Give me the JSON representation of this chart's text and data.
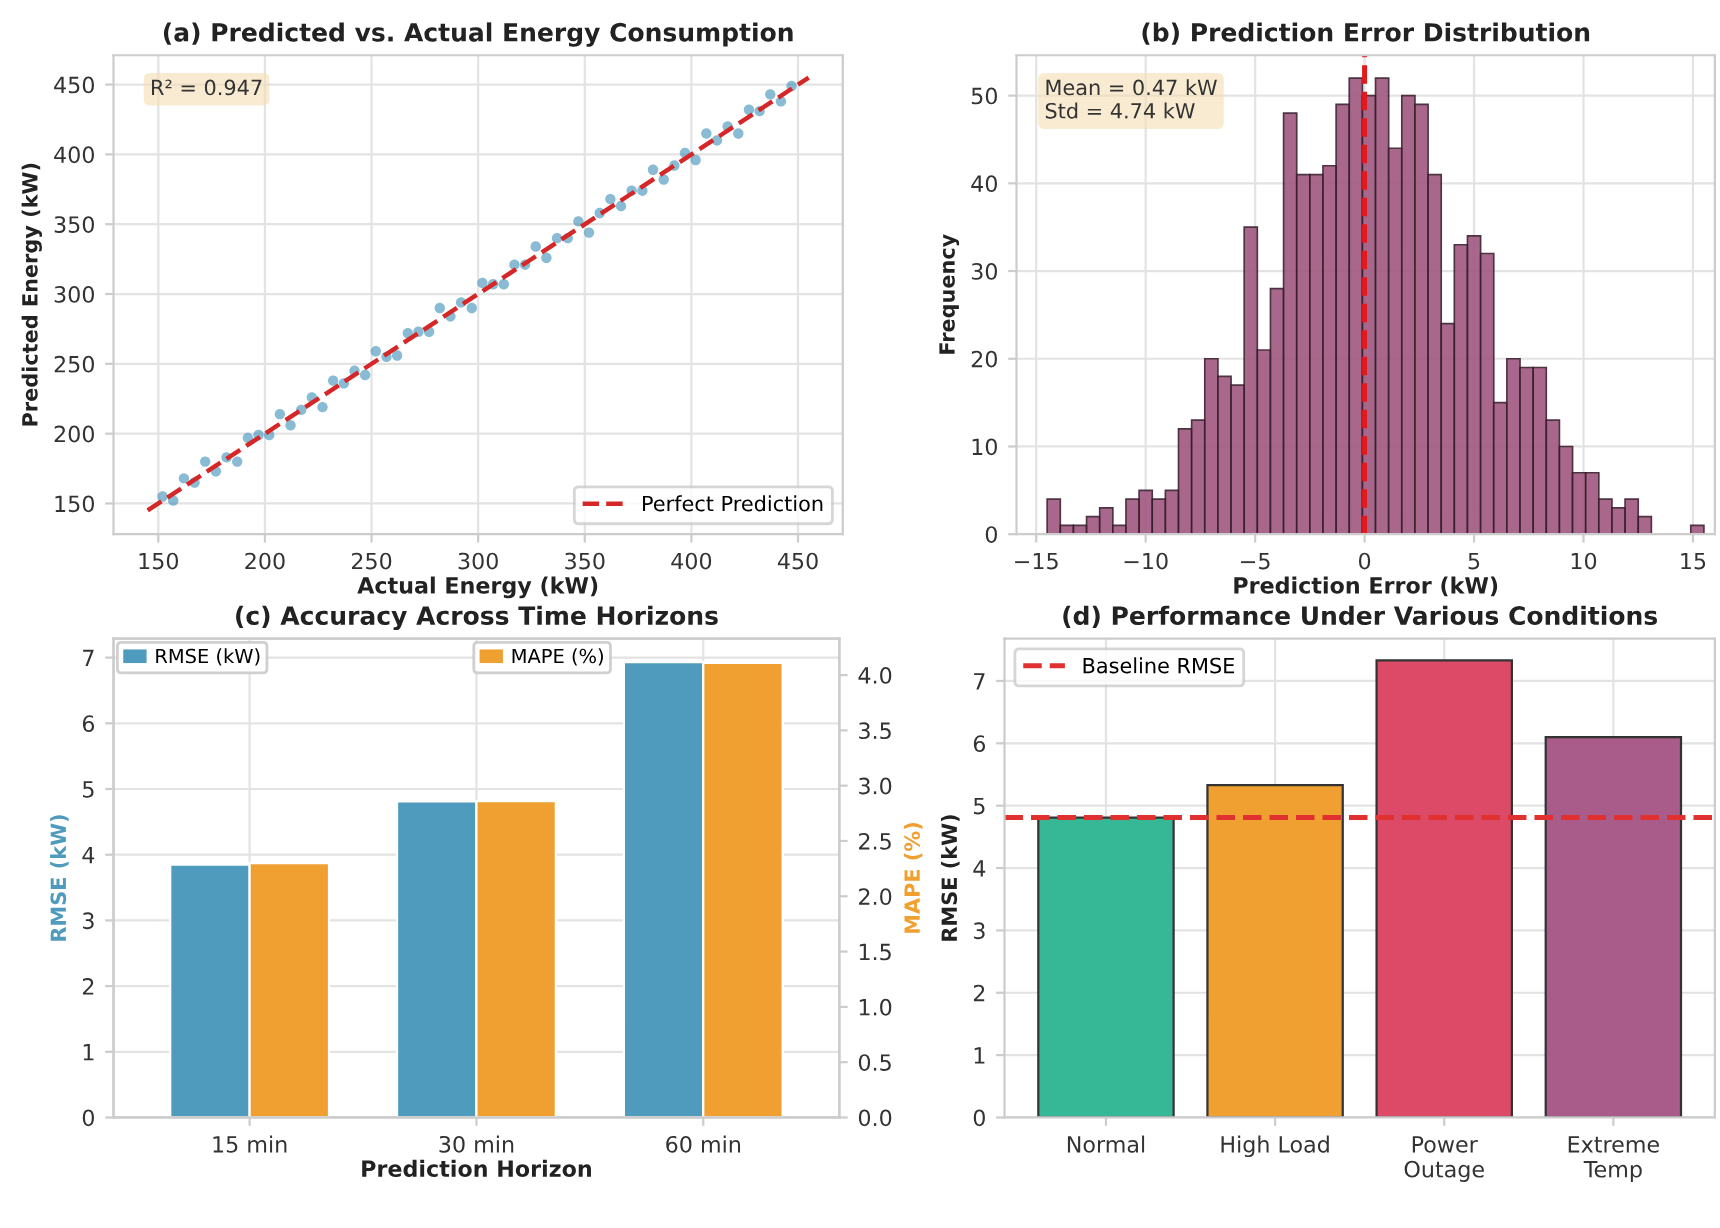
{
  "chart_data": [
    {
      "type": "scatter",
      "title": "(a) Predicted vs. Actual Energy Consumption",
      "xlabel": "Actual Energy (kW)",
      "ylabel": "Predicted Energy (kW)",
      "annotations": [
        "R² = 0.947"
      ],
      "xlim": [
        129,
        471
      ],
      "ylim": [
        128,
        471
      ],
      "xticks": [
        150,
        200,
        250,
        300,
        350,
        400,
        450
      ],
      "yticks": [
        150,
        200,
        250,
        300,
        350,
        400,
        450
      ],
      "grid": true,
      "legend": "bottom right",
      "series": [
        {
          "type": "scatter",
          "color": "#3a8fb7",
          "marker": "circle",
          "x": [
            152,
            157,
            162,
            167,
            172,
            177,
            182,
            187,
            192,
            197,
            202,
            207,
            212,
            217,
            222,
            227,
            232,
            237,
            242,
            247,
            252,
            257,
            262,
            267,
            272,
            277,
            282,
            287,
            292,
            297,
            302,
            307,
            312,
            317,
            322,
            327,
            332,
            337,
            342,
            347,
            352,
            357,
            362,
            367,
            372,
            377,
            382,
            387,
            392,
            397,
            402,
            407,
            412,
            417,
            422,
            427,
            432,
            437,
            442,
            447
          ],
          "values": [
            155,
            152,
            168,
            165,
            180,
            173,
            183,
            180,
            197,
            199,
            199,
            214,
            206,
            217,
            226,
            219,
            238,
            236,
            245,
            242,
            259,
            255,
            256,
            272,
            273,
            273,
            290,
            284,
            294,
            290,
            308,
            307,
            307,
            321,
            321,
            334,
            326,
            340,
            340,
            352,
            344,
            358,
            368,
            363,
            374,
            374,
            389,
            382,
            392,
            401,
            396,
            415,
            410,
            420,
            415,
            432,
            431,
            443,
            438,
            449
          ]
        },
        {
          "type": "line",
          "name": "Perfect Prediction",
          "color": "#d62728",
          "line_style": "dashed",
          "x": [
            145,
            455
          ],
          "values": [
            145,
            455
          ]
        }
      ]
    },
    {
      "type": "histogram",
      "title": "(b) Prediction Error Distribution",
      "xlabel": "Prediction Error (kW)",
      "ylabel": "Frequency",
      "annotations": [
        "Mean = 0.47 kW\nStd = 4.74 kW"
      ],
      "xlim": [
        -15.9,
        16.0
      ],
      "ylim": [
        0,
        54.6
      ],
      "xticks": [
        {
          "value": -15,
          "label": "−15"
        },
        {
          "value": -10,
          "label": "−10"
        },
        {
          "value": -5,
          "label": "−5"
        },
        0,
        5,
        10,
        15
      ],
      "yticks": [
        0,
        10,
        20,
        30,
        40,
        50
      ],
      "grid": true,
      "color": "#a0577f",
      "bins": [
        -14.5,
        -13.9,
        -13.3,
        -12.7,
        -12.1,
        -11.5,
        -10.9,
        -10.3,
        -9.7,
        -9.1,
        -8.5,
        -7.9,
        -7.3,
        -6.7,
        -6.1,
        -5.5,
        -4.9,
        -4.3,
        -3.7,
        -3.1,
        -2.5,
        -1.9,
        -1.3,
        -0.7,
        -0.1,
        0.5,
        1.1,
        1.7,
        2.3,
        2.9,
        3.5,
        4.1,
        4.7,
        5.3,
        5.9,
        6.5,
        7.1,
        7.7,
        8.3,
        8.9,
        9.5,
        10.1,
        10.7,
        11.3,
        11.9,
        12.5,
        13.1,
        13.7,
        14.3,
        14.9,
        15.5
      ],
      "values": [
        4,
        1,
        1,
        2,
        3,
        1,
        4,
        5,
        4,
        5,
        12,
        13,
        20,
        18,
        17,
        35,
        21,
        28,
        48,
        41,
        41,
        42,
        49,
        52,
        50,
        52,
        44,
        50,
        49,
        41,
        24,
        33,
        34,
        32,
        15,
        20,
        19,
        19,
        13,
        10,
        7,
        7,
        4,
        3,
        4,
        2,
        0,
        0,
        0,
        1
      ],
      "ref_lines": [
        {
          "axis": "x",
          "value": 0,
          "color": "#e31a1c",
          "line_style": "dashed"
        }
      ]
    },
    {
      "type": "bar",
      "title": "(c) Accuracy Across Time Horizons",
      "xlabel": "Prediction Horizon",
      "ylabel": "RMSE (kW)",
      "y2label": "MAPE (%)",
      "categories": [
        "15 min",
        "30 min",
        "60 min"
      ],
      "ylim": [
        0,
        7.29
      ],
      "yticks": [
        0,
        1,
        2,
        3,
        4,
        5,
        6,
        7
      ],
      "y2lim": [
        0,
        4.33
      ],
      "y2ticks": [
        {
          "value": 0,
          "label": "0.0"
        },
        0.5,
        {
          "value": 1,
          "label": "1.0"
        },
        1.5,
        {
          "value": 2,
          "label": "2.0"
        },
        2.5,
        {
          "value": 3,
          "label": "3.0"
        },
        3.5,
        {
          "value": 4,
          "label": "4.0"
        }
      ],
      "grid": true,
      "legend": "top",
      "series": [
        {
          "name": "RMSE (kW)",
          "color": "#4f9bbd",
          "values": [
            3.85,
            4.81,
            6.93
          ]
        },
        {
          "name": "MAPE (%)",
          "color": "#f0a030",
          "axis": "y2",
          "values": [
            2.3,
            2.86,
            4.11
          ]
        }
      ]
    },
    {
      "type": "bar",
      "title": "(d) Performance Under Various Conditions",
      "ylabel": "RMSE (kW)",
      "categories": [
        "Normal",
        "High Load",
        "Power\nOutage",
        "Extreme\nTemp"
      ],
      "values": [
        4.81,
        5.33,
        7.33,
        6.1
      ],
      "colors": [
        "#36b795",
        "#f0a030",
        "#dc4a67",
        "#a95b8a"
      ],
      "ylim": [
        0,
        7.68
      ],
      "yticks": [
        0,
        1,
        2,
        3,
        4,
        5,
        6,
        7
      ],
      "grid": true,
      "legend": "top left",
      "ref_lines": [
        {
          "axis": "y",
          "value": 4.81,
          "label": "Baseline RMSE",
          "color": "#e03030",
          "line_style": "dashed"
        }
      ]
    }
  ]
}
